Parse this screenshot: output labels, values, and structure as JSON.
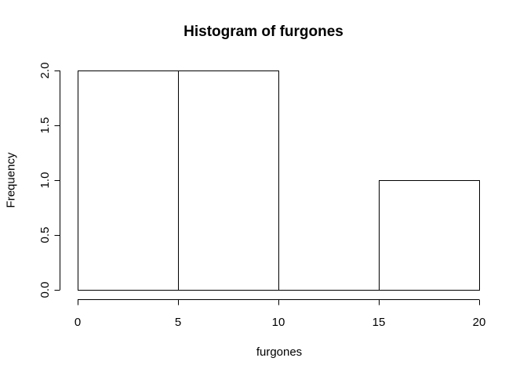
{
  "chart_data": {
    "type": "bar",
    "title": "Histogram of furgones",
    "xlabel": "furgones",
    "ylabel": "Frequency",
    "bins": [
      {
        "from": 0,
        "to": 5,
        "count": 2
      },
      {
        "from": 5,
        "to": 10,
        "count": 2
      },
      {
        "from": 10,
        "to": 15,
        "count": 0
      },
      {
        "from": 15,
        "to": 20,
        "count": 1
      }
    ],
    "xlim": [
      0,
      20
    ],
    "ylim": [
      0,
      2
    ],
    "xticks": [
      "0",
      "5",
      "10",
      "15",
      "20"
    ],
    "yticks": [
      "0.0",
      "0.5",
      "1.0",
      "1.5",
      "2.0"
    ],
    "grid": false
  }
}
